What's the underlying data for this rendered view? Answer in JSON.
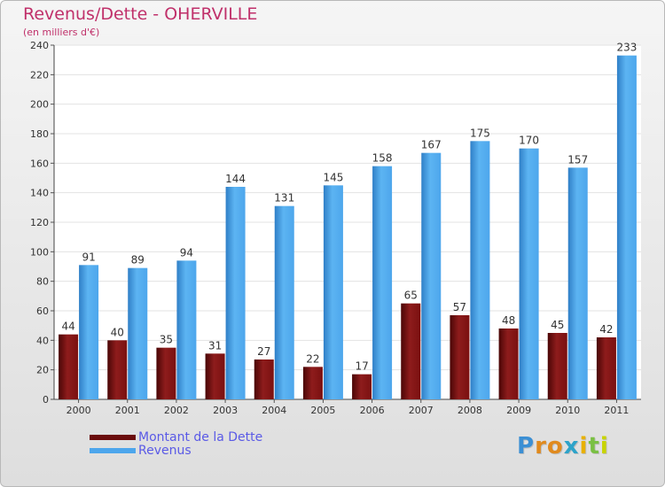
{
  "chart_data": {
    "type": "bar",
    "title": "Revenus/Dette - OHERVILLE",
    "subtitle": "(en milliers d'€)",
    "xlabel": "",
    "ylabel": "",
    "categories": [
      "2000",
      "2001",
      "2002",
      "2003",
      "2004",
      "2005",
      "2006",
      "2007",
      "2008",
      "2009",
      "2010",
      "2011"
    ],
    "series": [
      {
        "name": "Montant de la Dette",
        "color": "#7a1010",
        "values": [
          44,
          40,
          35,
          31,
          27,
          22,
          17,
          65,
          57,
          48,
          45,
          42
        ]
      },
      {
        "name": "Revenus",
        "color": "#4da6ec",
        "values": [
          91,
          89,
          94,
          144,
          131,
          145,
          158,
          167,
          175,
          170,
          157,
          233
        ]
      }
    ],
    "ylim": [
      0,
      240
    ],
    "yticks": [
      0,
      20,
      40,
      60,
      80,
      100,
      120,
      140,
      160,
      180,
      200,
      220,
      240
    ],
    "grid": true,
    "legend_position": "bottom-left",
    "data_labels": true
  },
  "brand": {
    "letters": [
      {
        "char": "P",
        "color": "#3b8fd4"
      },
      {
        "char": "r",
        "color": "#e08a1e"
      },
      {
        "char": "o",
        "color": "#e08a1e"
      },
      {
        "char": "x",
        "color": "#2da3c9"
      },
      {
        "char": "i",
        "color": "#e8b100"
      },
      {
        "char": "t",
        "color": "#7ac043"
      },
      {
        "char": "i",
        "color": "#c8d400"
      }
    ]
  }
}
